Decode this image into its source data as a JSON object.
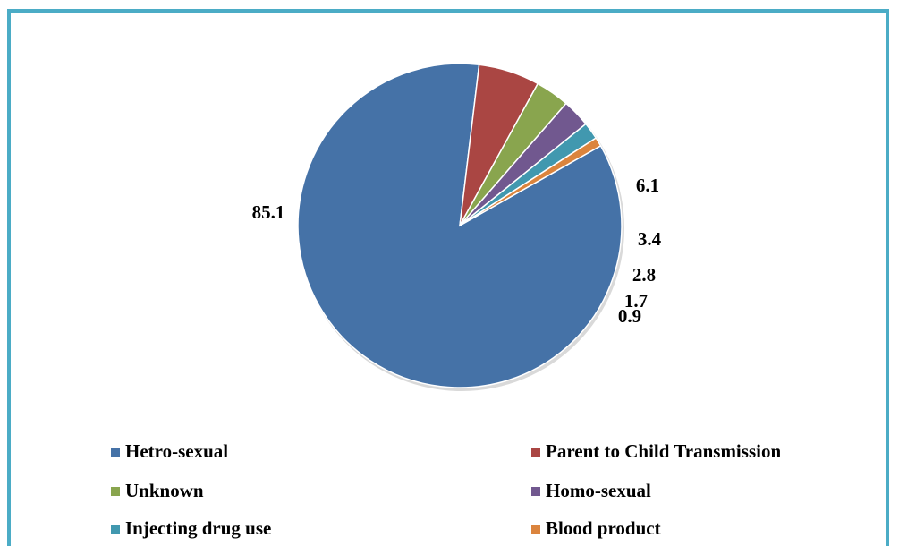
{
  "chart_data": {
    "type": "pie",
    "series": [
      {
        "name": "Hetro-sexual",
        "value": 85.1,
        "label": "85.1",
        "color": "#4572a7"
      },
      {
        "name": "Parent to Child Transmission",
        "value": 6.1,
        "label": "6.1",
        "color": "#aa4643"
      },
      {
        "name": "Unknown",
        "value": 3.4,
        "label": "3.4",
        "color": "#89a54e"
      },
      {
        "name": "Homo-sexual",
        "value": 2.8,
        "label": "2.8",
        "color": "#71588f"
      },
      {
        "name": "Injecting drug use",
        "value": 1.7,
        "label": "1.7",
        "color": "#4198af"
      },
      {
        "name": "Blood product",
        "value": 0.9,
        "label": "0.9",
        "color": "#db843d"
      }
    ],
    "legend_position": "bottom"
  },
  "frame_color": "#4bacc6"
}
